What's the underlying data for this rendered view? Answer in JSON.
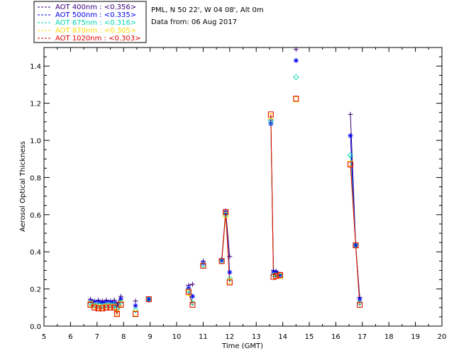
{
  "header": {
    "site": "PML, N 50 22', W 04 08', Alt 0m",
    "date_line": "Data from: 06 Aug 2017"
  },
  "chart_data": {
    "type": "line",
    "xlabel": "Time (GMT)",
    "ylabel": "Aerosol Optical Thickness",
    "xlim": [
      5,
      20
    ],
    "ylim": [
      0,
      1.5
    ],
    "x_ticks": [
      "5",
      "6",
      "7",
      "8",
      "9",
      "10",
      "11",
      "12",
      "13",
      "14",
      "15",
      "16",
      "17",
      "18",
      "19",
      "20"
    ],
    "y_ticks": [
      "0.0",
      "0.2",
      "0.4",
      "0.6",
      "0.8",
      "1.0",
      "1.2",
      "1.4"
    ],
    "grid": false,
    "legend_position": "top-left",
    "series": [
      {
        "name": "AOT  400nm : <0.356>",
        "color": "#3a007a",
        "marker": "plus",
        "x": [
          6.75,
          6.9,
          7.05,
          7.2,
          7.35,
          7.5,
          7.65,
          7.75,
          7.9,
          8.45,
          8.95,
          10.45,
          10.6,
          11.0,
          11.7,
          11.85,
          12.0,
          13.55,
          13.65,
          13.75,
          13.9,
          14.5,
          16.55,
          16.75,
          16.9
        ],
        "y": [
          0.145,
          0.135,
          0.14,
          0.135,
          0.14,
          0.135,
          0.14,
          0.12,
          0.16,
          0.135,
          0.14,
          0.22,
          0.225,
          0.35,
          0.36,
          0.62,
          0.375,
          1.11,
          0.3,
          0.295,
          0.28,
          1.49,
          1.14,
          0.44,
          0.155
        ]
      },
      {
        "name": "AOT  500nm : <0.335>",
        "color": "#0000ee",
        "marker": "star",
        "x": [
          6.75,
          6.9,
          7.05,
          7.2,
          7.35,
          7.5,
          7.65,
          7.75,
          7.9,
          8.45,
          8.95,
          10.45,
          10.6,
          11.0,
          11.7,
          11.85,
          12.0,
          13.55,
          13.65,
          13.75,
          13.9,
          14.5,
          16.55,
          16.75,
          16.9
        ],
        "y": [
          0.135,
          0.13,
          0.13,
          0.125,
          0.13,
          0.13,
          0.125,
          0.11,
          0.145,
          0.11,
          0.145,
          0.205,
          0.16,
          0.34,
          0.355,
          0.61,
          0.29,
          1.09,
          0.29,
          0.29,
          0.275,
          1.43,
          1.025,
          0.435,
          0.145
        ]
      },
      {
        "name": "AOT  675nm : <0.316>",
        "color": "#00d8b0",
        "marker": "diamond",
        "x": [
          6.75,
          6.9,
          7.05,
          7.2,
          7.35,
          7.5,
          7.65,
          7.75,
          7.9,
          8.45,
          8.95,
          10.45,
          10.6,
          11.0,
          11.7,
          11.85,
          12.0,
          13.55,
          13.65,
          13.75,
          13.9,
          14.5,
          16.55,
          16.75,
          16.9
        ],
        "y": [
          0.125,
          0.115,
          0.115,
          0.11,
          0.115,
          0.115,
          0.115,
          0.095,
          0.13,
          0.085,
          0.145,
          0.19,
          0.125,
          0.33,
          0.35,
          0.6,
          0.255,
          1.1,
          0.275,
          0.275,
          0.27,
          1.34,
          0.92,
          0.435,
          0.125
        ]
      },
      {
        "name": "AOT  870nm : <0.305>",
        "color": "#ffd800",
        "marker": "square",
        "x": [
          6.75,
          6.9,
          7.05,
          7.2,
          7.35,
          7.5,
          7.65,
          7.75,
          7.9,
          8.45,
          8.95,
          10.45,
          10.6,
          11.0,
          11.7,
          11.85,
          12.0,
          13.55,
          13.65,
          13.75,
          13.9,
          14.5,
          16.55,
          16.75,
          16.9
        ],
        "y": [
          0.12,
          0.105,
          0.1,
          0.1,
          0.105,
          0.105,
          0.105,
          0.07,
          0.12,
          0.07,
          0.145,
          0.18,
          0.115,
          0.325,
          0.35,
          0.6,
          0.24,
          1.13,
          0.265,
          0.27,
          0.27,
          1.22,
          0.875,
          0.435,
          0.115
        ]
      },
      {
        "name": "AOT 1020nm : <0.303>",
        "color": "#e00000",
        "marker": "square",
        "x": [
          6.75,
          6.9,
          7.05,
          7.2,
          7.35,
          7.5,
          7.65,
          7.75,
          7.9,
          8.45,
          8.95,
          10.45,
          10.6,
          11.0,
          11.7,
          11.85,
          12.0,
          13.55,
          13.65,
          13.75,
          13.9,
          14.5,
          16.55,
          16.75,
          16.9
        ],
        "y": [
          0.115,
          0.1,
          0.095,
          0.095,
          0.1,
          0.1,
          0.1,
          0.065,
          0.115,
          0.065,
          0.145,
          0.185,
          0.115,
          0.325,
          0.35,
          0.615,
          0.235,
          1.14,
          0.265,
          0.27,
          0.275,
          1.225,
          0.87,
          0.435,
          0.115
        ]
      }
    ]
  }
}
